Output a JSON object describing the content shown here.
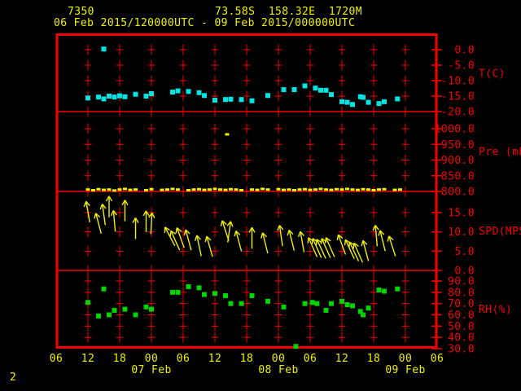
{
  "header": {
    "station_id": "7350",
    "location": "73.58S  158.32E  1720M",
    "time_range": "06 Feb 2015/120000UTC - 09 Feb 2015/000000UTC"
  },
  "footer": {
    "page_number": "2"
  },
  "colors": {
    "background": "#000000",
    "frame_red": "#f40000",
    "label_yellow": "#f0f000",
    "temp_cyan": "#00e4e4",
    "pressure_yellow": "#f0f000",
    "wind_yellow": "#f0f000",
    "rh_green": "#00d400"
  },
  "chart_data": {
    "type": "scatter",
    "title": "06 Feb 2015/120000UTC - 09 Feb 2015/000000UTC",
    "x": {
      "unit": "hours since 06 Feb 2015 06UTC",
      "range": [
        0,
        72
      ],
      "tick_interval_hours": 6,
      "tick_labels": [
        "06",
        "12",
        "18",
        "00",
        "06",
        "12",
        "18",
        "00",
        "06",
        "12",
        "18",
        "00",
        "06"
      ],
      "day_labels": [
        {
          "label": "07 Feb",
          "h": 18
        },
        {
          "label": "08 Feb",
          "h": 42
        },
        {
          "label": "09 Feb",
          "h": 66
        }
      ],
      "grid": "dashed-cross"
    },
    "panels": [
      {
        "name": "temperature",
        "ylabel": "T(C)",
        "ticks": [
          0.0,
          -5.0,
          -10.0,
          -15.0,
          -20.0
        ],
        "ylim": [
          2.5,
          -22.5
        ],
        "marker": "square",
        "point_format": "[hours, degC]",
        "points": [
          [
            6,
            -15.6
          ],
          [
            8,
            -15.3
          ],
          [
            9,
            0.2
          ],
          [
            9,
            -15.9
          ],
          [
            10,
            -15.0
          ],
          [
            11,
            -15.3
          ],
          [
            12,
            -14.9
          ],
          [
            13,
            -15.2
          ],
          [
            15,
            -14.4
          ],
          [
            17,
            -15.0
          ],
          [
            18,
            -14.2
          ],
          [
            22,
            -13.7
          ],
          [
            23,
            -13.3
          ],
          [
            25,
            -13.5
          ],
          [
            27,
            -13.9
          ],
          [
            28,
            -14.8
          ],
          [
            30,
            -16.3
          ],
          [
            32,
            -16.1
          ],
          [
            33,
            -16.0
          ],
          [
            35,
            -16.1
          ],
          [
            37,
            -16.5
          ],
          [
            40,
            -14.8
          ],
          [
            43,
            -12.9
          ],
          [
            45,
            -12.9
          ],
          [
            47,
            -11.7
          ],
          [
            49,
            -12.4
          ],
          [
            50,
            -13.1
          ],
          [
            51,
            -13.1
          ],
          [
            52,
            -14.5
          ],
          [
            54,
            -16.8
          ],
          [
            55,
            -17.0
          ],
          [
            56,
            -17.7
          ],
          [
            57.5,
            -15.2
          ],
          [
            58,
            -15.4
          ],
          [
            59,
            -17.0
          ],
          [
            61,
            -17.4
          ],
          [
            62,
            -16.8
          ],
          [
            64.5,
            -15.9
          ]
        ]
      },
      {
        "name": "pressure",
        "ylabel": "Pre (mb)",
        "ticks": [
          1000.0,
          950.0,
          900.0,
          850.0,
          800.0
        ],
        "ylim": [
          1055,
          800
        ],
        "marker": "small-square",
        "point_format": "[hours, mb]",
        "points": [
          [
            6,
            806
          ],
          [
            7,
            804
          ],
          [
            8,
            807
          ],
          [
            9,
            805
          ],
          [
            10,
            806
          ],
          [
            11,
            803
          ],
          [
            12,
            806
          ],
          [
            13,
            808
          ],
          [
            14,
            805
          ],
          [
            15,
            806
          ],
          [
            17,
            804
          ],
          [
            18,
            807
          ],
          [
            20,
            805
          ],
          [
            21,
            806
          ],
          [
            22,
            808
          ],
          [
            23,
            806
          ],
          [
            25,
            804
          ],
          [
            26,
            806
          ],
          [
            27,
            807
          ],
          [
            28,
            805
          ],
          [
            29,
            806
          ],
          [
            30,
            808
          ],
          [
            31,
            806
          ],
          [
            32,
            805
          ],
          [
            32.3,
            982
          ],
          [
            33,
            807
          ],
          [
            34,
            806
          ],
          [
            35,
            804
          ],
          [
            37,
            806
          ],
          [
            38,
            805
          ],
          [
            39,
            808
          ],
          [
            40,
            806
          ],
          [
            42,
            807
          ],
          [
            43,
            805
          ],
          [
            44,
            806
          ],
          [
            45,
            804
          ],
          [
            46,
            806
          ],
          [
            47,
            807
          ],
          [
            48,
            805
          ],
          [
            49,
            806
          ],
          [
            50,
            808
          ],
          [
            51,
            806
          ],
          [
            52,
            805
          ],
          [
            53,
            807
          ],
          [
            54,
            806
          ],
          [
            55,
            808
          ],
          [
            56,
            806
          ],
          [
            57,
            805
          ],
          [
            58,
            807
          ],
          [
            59,
            806
          ],
          [
            60,
            804
          ],
          [
            61,
            806
          ],
          [
            62,
            807
          ],
          [
            64,
            805
          ],
          [
            65,
            806
          ]
        ]
      },
      {
        "name": "wind_speed",
        "ylabel": "SPD(MPS)",
        "ticks": [
          15.0,
          10.0,
          5.0,
          0.0
        ],
        "ylim": [
          20.5,
          0
        ],
        "marker": "arrow",
        "point_format": "[hours, mps, arrow_heading_deg_from_up]",
        "points": [
          [
            6,
            15.2,
            -10
          ],
          [
            8,
            12.2,
            -15
          ],
          [
            9,
            14.5,
            -8
          ],
          [
            10,
            16.5,
            0
          ],
          [
            11,
            12.8,
            -5
          ],
          [
            13,
            15.5,
            0
          ],
          [
            15,
            10.9,
            0
          ],
          [
            17,
            12.7,
            0
          ],
          [
            18,
            12.2,
            3
          ],
          [
            21.5,
            8.8,
            -28
          ],
          [
            22.5,
            7.8,
            -24
          ],
          [
            23.5,
            8.5,
            -20
          ],
          [
            25,
            7.9,
            -15
          ],
          [
            27,
            6.4,
            -12
          ],
          [
            29,
            6.2,
            -16
          ],
          [
            32,
            10.3,
            -18
          ],
          [
            32.7,
            10.0,
            8
          ],
          [
            34.5,
            7.6,
            -15
          ],
          [
            37,
            8.4,
            0
          ],
          [
            39.5,
            7.1,
            -14
          ],
          [
            42.5,
            9.0,
            -8
          ],
          [
            44.5,
            7.8,
            -14
          ],
          [
            46.5,
            7.4,
            -10
          ],
          [
            48.5,
            6.0,
            -24
          ],
          [
            49.3,
            5.8,
            -24
          ],
          [
            50.1,
            5.6,
            -25
          ],
          [
            51,
            5.8,
            -24
          ],
          [
            51.8,
            6.0,
            -24
          ],
          [
            54,
            6.7,
            -20
          ],
          [
            55.5,
            5.5,
            -25
          ],
          [
            56.3,
            4.9,
            -25
          ],
          [
            57.1,
            4.6,
            -24
          ],
          [
            58.5,
            5.1,
            -15
          ],
          [
            60.5,
            9.0,
            -5
          ],
          [
            61.7,
            7.7,
            -14
          ],
          [
            63.5,
            6.3,
            -18
          ]
        ]
      },
      {
        "name": "relative_humidity",
        "ylabel": "RH(%)",
        "ticks": [
          90.0,
          80.0,
          70.0,
          60.0,
          50.0,
          40.0,
          30.0
        ],
        "ylim": [
          99.5,
          30
        ],
        "marker": "square",
        "point_format": "[hours, percent]",
        "points": [
          [
            6,
            71
          ],
          [
            8,
            59
          ],
          [
            9,
            83
          ],
          [
            10,
            60
          ],
          [
            11,
            64
          ],
          [
            13,
            65
          ],
          [
            15,
            60
          ],
          [
            17,
            67
          ],
          [
            18,
            65
          ],
          [
            22,
            80
          ],
          [
            23,
            80
          ],
          [
            25,
            85
          ],
          [
            27,
            84
          ],
          [
            28,
            78
          ],
          [
            30,
            79
          ],
          [
            32,
            77
          ],
          [
            33,
            70
          ],
          [
            35,
            70
          ],
          [
            37,
            77
          ],
          [
            40,
            72
          ],
          [
            43,
            67
          ],
          [
            45.3,
            32
          ],
          [
            47,
            70
          ],
          [
            48.4,
            71
          ],
          [
            49.3,
            70
          ],
          [
            51,
            64
          ],
          [
            52,
            70
          ],
          [
            54,
            72
          ],
          [
            55,
            69
          ],
          [
            56,
            68
          ],
          [
            57.5,
            63
          ],
          [
            58,
            60
          ],
          [
            59,
            66
          ],
          [
            61,
            82
          ],
          [
            62,
            81
          ],
          [
            64.5,
            83
          ]
        ]
      }
    ],
    "legend": "none"
  }
}
